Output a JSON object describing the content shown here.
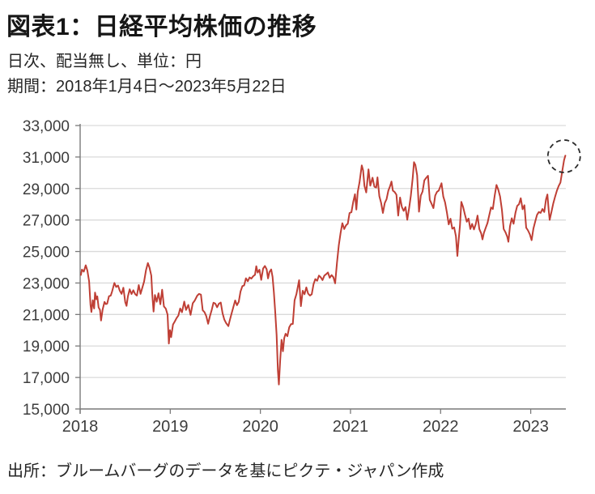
{
  "header": {
    "title": "図表1：日経平均株価の推移",
    "subtitle": "日次、配当無し、単位：円",
    "period": "期間：2018年1月4日～2023年5月22日"
  },
  "footer": {
    "source": "出所：ブルームバーグのデータを基にピクテ・ジャパン作成"
  },
  "colors": {
    "line": "#bf3f35",
    "grid": "#dadada",
    "axis": "#7a7a7a",
    "tick_label": "#3d3d3d",
    "annotation": "#2b2b2b",
    "background": "#ffffff"
  },
  "chart_data": {
    "type": "line",
    "title": "日経平均株価の推移",
    "xlabel": "",
    "ylabel": "円",
    "x_range": [
      2018,
      2023.39
    ],
    "y_range": [
      15000,
      33000
    ],
    "x_ticks": [
      2018,
      2019,
      2020,
      2021,
      2022,
      2023
    ],
    "y_ticks": [
      15000,
      17000,
      19000,
      21000,
      23000,
      25000,
      27000,
      29000,
      31000,
      33000
    ],
    "grid": "horizontal-light",
    "legend": "none",
    "annotation": {
      "shape": "dashed-circle",
      "x": 2023.37,
      "value": 31050
    },
    "series": [
      {
        "name": "日経平均株価",
        "color": "#bf3f35",
        "points": [
          [
            2018.008,
            23510
          ],
          [
            2018.02,
            23850
          ],
          [
            2018.04,
            23720
          ],
          [
            2018.062,
            24124
          ],
          [
            2018.08,
            23800
          ],
          [
            2018.1,
            23100
          ],
          [
            2018.115,
            21610
          ],
          [
            2018.125,
            21154
          ],
          [
            2018.14,
            21900
          ],
          [
            2018.155,
            21380
          ],
          [
            2018.165,
            22389
          ],
          [
            2018.18,
            21970
          ],
          [
            2018.19,
            22150
          ],
          [
            2018.205,
            21450
          ],
          [
            2018.22,
            21290
          ],
          [
            2018.232,
            20618
          ],
          [
            2018.25,
            21320
          ],
          [
            2018.27,
            21800
          ],
          [
            2018.285,
            21660
          ],
          [
            2018.3,
            21690
          ],
          [
            2018.32,
            22160
          ],
          [
            2018.34,
            22200
          ],
          [
            2018.355,
            22470
          ],
          [
            2018.38,
            23002
          ],
          [
            2018.4,
            22750
          ],
          [
            2018.42,
            22840
          ],
          [
            2018.44,
            22510
          ],
          [
            2018.46,
            22310
          ],
          [
            2018.48,
            22700
          ],
          [
            2018.5,
            21790
          ],
          [
            2018.515,
            21547
          ],
          [
            2018.53,
            22150
          ],
          [
            2018.55,
            22600
          ],
          [
            2018.57,
            22300
          ],
          [
            2018.59,
            22540
          ],
          [
            2018.61,
            22300
          ],
          [
            2018.63,
            22200
          ],
          [
            2018.65,
            22870
          ],
          [
            2018.67,
            22310
          ],
          [
            2018.69,
            22700
          ],
          [
            2018.71,
            23090
          ],
          [
            2018.73,
            23800
          ],
          [
            2018.752,
            24270
          ],
          [
            2018.77,
            23970
          ],
          [
            2018.79,
            23470
          ],
          [
            2018.8,
            22270
          ],
          [
            2018.815,
            21185
          ],
          [
            2018.83,
            22240
          ],
          [
            2018.85,
            21810
          ],
          [
            2018.87,
            22350
          ],
          [
            2018.89,
            21650
          ],
          [
            2018.91,
            22570
          ],
          [
            2018.93,
            21510
          ],
          [
            2018.95,
            21370
          ],
          [
            2018.97,
            20990
          ],
          [
            2018.985,
            19156
          ],
          [
            2018.997,
            20010
          ],
          [
            2019.01,
            19562
          ],
          [
            2019.03,
            20360
          ],
          [
            2019.05,
            20555
          ],
          [
            2019.07,
            20770
          ],
          [
            2019.09,
            20930
          ],
          [
            2019.11,
            21380
          ],
          [
            2019.13,
            21140
          ],
          [
            2019.155,
            21822
          ],
          [
            2019.175,
            21290
          ],
          [
            2019.2,
            21610
          ],
          [
            2019.225,
            20977
          ],
          [
            2019.25,
            21710
          ],
          [
            2019.27,
            21870
          ],
          [
            2019.3,
            22200
          ],
          [
            2019.32,
            22308
          ],
          [
            2019.34,
            22260
          ],
          [
            2019.36,
            21270
          ],
          [
            2019.38,
            21150
          ],
          [
            2019.4,
            20900
          ],
          [
            2019.42,
            20408
          ],
          [
            2019.44,
            20890
          ],
          [
            2019.46,
            21280
          ],
          [
            2019.48,
            21750
          ],
          [
            2019.5,
            21690
          ],
          [
            2019.52,
            21460
          ],
          [
            2019.54,
            21685
          ],
          [
            2019.56,
            21756
          ],
          [
            2019.58,
            21090
          ],
          [
            2019.6,
            20680
          ],
          [
            2019.62,
            20455
          ],
          [
            2019.645,
            20261
          ],
          [
            2019.66,
            20620
          ],
          [
            2019.68,
            21050
          ],
          [
            2019.7,
            21460
          ],
          [
            2019.72,
            21890
          ],
          [
            2019.74,
            21590
          ],
          [
            2019.76,
            21800
          ],
          [
            2019.78,
            22450
          ],
          [
            2019.8,
            22800
          ],
          [
            2019.82,
            22850
          ],
          [
            2019.84,
            23300
          ],
          [
            2019.86,
            23110
          ],
          [
            2019.88,
            23350
          ],
          [
            2019.9,
            23280
          ],
          [
            2019.92,
            23430
          ],
          [
            2019.94,
            23520
          ],
          [
            2019.955,
            24066
          ],
          [
            2019.97,
            23660
          ],
          [
            2019.99,
            23840
          ],
          [
            2020.01,
            23200
          ],
          [
            2020.03,
            23920
          ],
          [
            2020.05,
            24084
          ],
          [
            2020.07,
            23870
          ],
          [
            2020.085,
            23290
          ],
          [
            2020.1,
            23690
          ],
          [
            2020.12,
            23860
          ],
          [
            2020.135,
            23390
          ],
          [
            2020.15,
            22420
          ],
          [
            2020.165,
            21140
          ],
          [
            2020.18,
            19700
          ],
          [
            2020.195,
            17430
          ],
          [
            2020.205,
            16553
          ],
          [
            2020.22,
            18090
          ],
          [
            2020.235,
            19390
          ],
          [
            2020.25,
            18660
          ],
          [
            2020.265,
            19500
          ],
          [
            2020.28,
            19780
          ],
          [
            2020.3,
            19620
          ],
          [
            2020.32,
            20190
          ],
          [
            2020.34,
            20390
          ],
          [
            2020.36,
            20400
          ],
          [
            2020.38,
            21900
          ],
          [
            2020.4,
            22300
          ],
          [
            2020.43,
            23178
          ],
          [
            2020.45,
            21531
          ],
          [
            2020.47,
            22510
          ],
          [
            2020.49,
            22290
          ],
          [
            2020.51,
            22720
          ],
          [
            2020.53,
            22330
          ],
          [
            2020.55,
            22200
          ],
          [
            2020.57,
            22290
          ],
          [
            2020.59,
            22920
          ],
          [
            2020.61,
            23250
          ],
          [
            2020.63,
            23140
          ],
          [
            2020.65,
            23470
          ],
          [
            2020.67,
            23360
          ],
          [
            2020.69,
            23180
          ],
          [
            2020.71,
            23470
          ],
          [
            2020.73,
            23560
          ],
          [
            2020.75,
            23670
          ],
          [
            2020.77,
            23330
          ],
          [
            2020.79,
            23500
          ],
          [
            2020.81,
            23370
          ],
          [
            2020.83,
            22977
          ],
          [
            2020.85,
            24300
          ],
          [
            2020.87,
            25390
          ],
          [
            2020.89,
            26170
          ],
          [
            2020.91,
            26800
          ],
          [
            2020.93,
            26430
          ],
          [
            2020.95,
            26660
          ],
          [
            2020.97,
            26760
          ],
          [
            2020.99,
            27444
          ],
          [
            2021.01,
            27490
          ],
          [
            2021.03,
            28140
          ],
          [
            2021.05,
            28640
          ],
          [
            2021.065,
            27660
          ],
          [
            2021.08,
            28780
          ],
          [
            2021.1,
            29390
          ],
          [
            2021.125,
            30467
          ],
          [
            2021.14,
            30160
          ],
          [
            2021.155,
            29170
          ],
          [
            2021.175,
            28750
          ],
          [
            2021.2,
            30216
          ],
          [
            2021.22,
            29180
          ],
          [
            2021.245,
            29690
          ],
          [
            2021.265,
            29110
          ],
          [
            2021.285,
            29060
          ],
          [
            2021.3,
            29710
          ],
          [
            2021.32,
            28510
          ],
          [
            2021.34,
            28090
          ],
          [
            2021.36,
            27448
          ],
          [
            2021.38,
            28080
          ],
          [
            2021.4,
            28320
          ],
          [
            2021.42,
            28860
          ],
          [
            2021.44,
            29160
          ],
          [
            2021.455,
            29441
          ],
          [
            2021.47,
            28870
          ],
          [
            2021.49,
            28780
          ],
          [
            2021.51,
            28610
          ],
          [
            2021.53,
            27280
          ],
          [
            2021.55,
            28430
          ],
          [
            2021.57,
            27830
          ],
          [
            2021.59,
            27580
          ],
          [
            2021.61,
            27820
          ],
          [
            2021.63,
            27013
          ],
          [
            2021.65,
            27730
          ],
          [
            2021.67,
            28540
          ],
          [
            2021.69,
            29660
          ],
          [
            2021.705,
            30670
          ],
          [
            2021.72,
            30500
          ],
          [
            2021.74,
            29840
          ],
          [
            2021.76,
            27528
          ],
          [
            2021.78,
            28550
          ],
          [
            2021.8,
            28810
          ],
          [
            2021.82,
            29520
          ],
          [
            2021.84,
            29680
          ],
          [
            2021.86,
            29810
          ],
          [
            2021.88,
            28280
          ],
          [
            2021.9,
            28030
          ],
          [
            2021.92,
            27752
          ],
          [
            2021.94,
            28550
          ],
          [
            2021.96,
            28790
          ],
          [
            2021.98,
            28870
          ],
          [
            2022.01,
            29332
          ],
          [
            2022.03,
            28490
          ],
          [
            2022.05,
            28120
          ],
          [
            2022.07,
            27460
          ],
          [
            2022.09,
            26720
          ],
          [
            2022.11,
            27080
          ],
          [
            2022.13,
            26450
          ],
          [
            2022.15,
            26530
          ],
          [
            2022.17,
            25970
          ],
          [
            2022.186,
            24718
          ],
          [
            2022.2,
            25690
          ],
          [
            2022.215,
            26650
          ],
          [
            2022.23,
            28150
          ],
          [
            2022.25,
            27820
          ],
          [
            2022.27,
            27350
          ],
          [
            2022.29,
            26890
          ],
          [
            2022.31,
            27090
          ],
          [
            2022.33,
            26430
          ],
          [
            2022.35,
            26750
          ],
          [
            2022.37,
            26400
          ],
          [
            2022.39,
            26740
          ],
          [
            2022.41,
            27280
          ],
          [
            2022.43,
            26430
          ],
          [
            2022.45,
            26150
          ],
          [
            2022.465,
            25771
          ],
          [
            2022.48,
            26170
          ],
          [
            2022.5,
            26490
          ],
          [
            2022.52,
            26810
          ],
          [
            2022.54,
            27310
          ],
          [
            2022.56,
            27800
          ],
          [
            2022.58,
            27700
          ],
          [
            2022.6,
            28550
          ],
          [
            2022.62,
            29223
          ],
          [
            2022.64,
            28930
          ],
          [
            2022.66,
            28500
          ],
          [
            2022.68,
            27650
          ],
          [
            2022.7,
            26430
          ],
          [
            2022.72,
            26220
          ],
          [
            2022.74,
            25937
          ],
          [
            2022.752,
            25621
          ],
          [
            2022.77,
            26600
          ],
          [
            2022.79,
            27110
          ],
          [
            2022.81,
            26760
          ],
          [
            2022.83,
            27450
          ],
          [
            2022.85,
            27900
          ],
          [
            2022.87,
            28000
          ],
          [
            2022.89,
            28383
          ],
          [
            2022.91,
            27680
          ],
          [
            2022.93,
            27940
          ],
          [
            2022.95,
            26510
          ],
          [
            2022.97,
            26340
          ],
          [
            2022.99,
            26094
          ],
          [
            2023.01,
            25717
          ],
          [
            2023.03,
            26450
          ],
          [
            2023.05,
            26910
          ],
          [
            2023.07,
            27330
          ],
          [
            2023.09,
            27510
          ],
          [
            2023.11,
            27450
          ],
          [
            2023.13,
            27700
          ],
          [
            2023.15,
            27510
          ],
          [
            2023.17,
            28310
          ],
          [
            2023.185,
            28623
          ],
          [
            2023.2,
            27620
          ],
          [
            2023.21,
            27010
          ],
          [
            2023.23,
            27520
          ],
          [
            2023.25,
            28040
          ],
          [
            2023.27,
            28460
          ],
          [
            2023.29,
            28860
          ],
          [
            2023.31,
            29160
          ],
          [
            2023.33,
            29380
          ],
          [
            2023.35,
            30090
          ],
          [
            2023.37,
            30810
          ],
          [
            2023.385,
            31086
          ]
        ]
      }
    ]
  }
}
